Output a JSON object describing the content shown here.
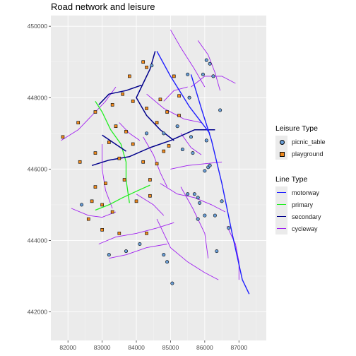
{
  "title": "Road network and leisure",
  "colors": {
    "panel": "#ebebeb",
    "grid_major": "#ffffff",
    "motorway": "#1f1fff",
    "primary": "#22ee22",
    "secondary": "#00008b",
    "cycleway": "#a020f0",
    "picnic_table": "#6a9fd8",
    "playground": "#f08a1e"
  },
  "axes": {
    "x_ticks": [
      "82000",
      "83000",
      "84000",
      "85000",
      "86000",
      "87000"
    ],
    "y_ticks": [
      "442000",
      "444000",
      "446000",
      "448000",
      "450000"
    ],
    "x_range": [
      81500,
      87800
    ],
    "y_range": [
      441200,
      450300
    ]
  },
  "legend": {
    "leisure_title": "Leisure Type",
    "leisure_items": [
      {
        "label": "picnic_table",
        "shape": "circle",
        "color_key": "picnic_table"
      },
      {
        "label": "playground",
        "shape": "square",
        "color_key": "playground"
      }
    ],
    "line_title": "Line Type",
    "line_items": [
      {
        "label": "motorway",
        "color_key": "motorway"
      },
      {
        "label": "primary",
        "color_key": "primary"
      },
      {
        "label": "secondary",
        "color_key": "secondary"
      },
      {
        "label": "cycleway",
        "color_key": "cycleway"
      }
    ]
  },
  "chart_data": {
    "type": "scatter",
    "title": "Road network and leisure",
    "xlim": [
      81500,
      87800
    ],
    "ylim": [
      441200,
      450300
    ],
    "grid": true,
    "legend_position": "right",
    "lines": [
      {
        "type": "motorway",
        "coords": [
          [
            85600,
            448650
          ],
          [
            85900,
            447700
          ],
          [
            86200,
            446800
          ],
          [
            86500,
            445600
          ],
          [
            86800,
            444200
          ],
          [
            87100,
            442900
          ],
          [
            87300,
            442500
          ]
        ]
      },
      {
        "type": "motorway",
        "coords": [
          [
            84600,
            449300
          ],
          [
            85000,
            448600
          ],
          [
            85550,
            447750
          ],
          [
            86150,
            447000
          ]
        ]
      },
      {
        "type": "primary",
        "coords": [
          [
            82800,
            444850
          ],
          [
            83200,
            445000
          ],
          [
            83600,
            445200
          ],
          [
            84050,
            445400
          ],
          [
            84400,
            445550
          ]
        ]
      },
      {
        "type": "primary",
        "coords": [
          [
            82800,
            447900
          ],
          [
            83000,
            447600
          ],
          [
            83250,
            447100
          ],
          [
            83550,
            446700
          ],
          [
            83700,
            446200
          ],
          [
            83700,
            445700
          ],
          [
            83800,
            445050
          ]
        ]
      },
      {
        "type": "secondary",
        "coords": [
          [
            84550,
            449300
          ],
          [
            84400,
            448800
          ],
          [
            84200,
            448400
          ],
          [
            84000,
            448000
          ],
          [
            84300,
            447500
          ],
          [
            84700,
            447100
          ],
          [
            85100,
            446800
          ]
        ]
      },
      {
        "type": "secondary",
        "coords": [
          [
            82700,
            446100
          ],
          [
            83200,
            446250
          ],
          [
            83800,
            446350
          ],
          [
            84400,
            446600
          ],
          [
            85000,
            446800
          ],
          [
            85700,
            447100
          ],
          [
            86300,
            447100
          ]
        ]
      },
      {
        "type": "secondary",
        "coords": [
          [
            82900,
            447800
          ],
          [
            83200,
            448100
          ],
          [
            83700,
            448200
          ],
          [
            84150,
            448350
          ]
        ]
      },
      {
        "type": "secondary",
        "coords": [
          [
            83000,
            446950
          ],
          [
            83700,
            446500
          ]
        ]
      },
      {
        "type": "cycleway",
        "coords": [
          [
            81800,
            446800
          ],
          [
            82300,
            447100
          ],
          [
            82700,
            447500
          ],
          [
            83100,
            447900
          ],
          [
            83400,
            448300
          ]
        ]
      },
      {
        "type": "cycleway",
        "coords": [
          [
            82100,
            444900
          ],
          [
            82600,
            444700
          ],
          [
            83000,
            444650
          ],
          [
            83400,
            444800
          ]
        ]
      },
      {
        "type": "cycleway",
        "coords": [
          [
            82900,
            443900
          ],
          [
            83400,
            444100
          ],
          [
            84000,
            444200
          ],
          [
            84600,
            444350
          ],
          [
            85100,
            444500
          ]
        ]
      },
      {
        "type": "cycleway",
        "coords": [
          [
            83200,
            443500
          ],
          [
            83700,
            443600
          ],
          [
            84300,
            443800
          ],
          [
            84900,
            443900
          ]
        ]
      },
      {
        "type": "cycleway",
        "coords": [
          [
            84600,
            444600
          ],
          [
            85000,
            443800
          ],
          [
            85500,
            443400
          ],
          [
            86000,
            443100
          ],
          [
            86400,
            442900
          ]
        ]
      },
      {
        "type": "cycleway",
        "coords": [
          [
            85300,
            445500
          ],
          [
            85650,
            444900
          ],
          [
            86000,
            444200
          ],
          [
            86100,
            443500
          ]
        ]
      },
      {
        "type": "cycleway",
        "coords": [
          [
            84300,
            448100
          ],
          [
            84800,
            447700
          ],
          [
            85400,
            447400
          ],
          [
            85900,
            447300
          ]
        ]
      },
      {
        "type": "cycleway",
        "coords": [
          [
            85000,
            449900
          ],
          [
            85300,
            449400
          ],
          [
            85700,
            448800
          ],
          [
            86000,
            448300
          ]
        ]
      },
      {
        "type": "cycleway",
        "coords": [
          [
            85800,
            449600
          ],
          [
            86100,
            449200
          ],
          [
            86300,
            448700
          ],
          [
            86450,
            448200
          ]
        ]
      },
      {
        "type": "cycleway",
        "coords": [
          [
            85600,
            448300
          ],
          [
            86000,
            448600
          ],
          [
            86500,
            448600
          ],
          [
            86900,
            448400
          ]
        ]
      },
      {
        "type": "cycleway",
        "coords": [
          [
            84700,
            445600
          ],
          [
            85200,
            445300
          ],
          [
            85700,
            445200
          ],
          [
            86200,
            445000
          ],
          [
            86600,
            444800
          ]
        ]
      },
      {
        "type": "cycleway",
        "coords": [
          [
            85000,
            446000
          ],
          [
            85500,
            446100
          ],
          [
            86000,
            446150
          ],
          [
            86500,
            446200
          ]
        ]
      },
      {
        "type": "cycleway",
        "coords": [
          [
            84200,
            446900
          ],
          [
            84500,
            446400
          ],
          [
            84700,
            445900
          ],
          [
            84900,
            445500
          ]
        ]
      },
      {
        "type": "cycleway",
        "coords": [
          [
            83000,
            446700
          ],
          [
            83000,
            446000
          ],
          [
            83100,
            445400
          ],
          [
            83300,
            444900
          ]
        ]
      },
      {
        "type": "cycleway",
        "coords": [
          [
            84800,
            447900
          ],
          [
            85100,
            448200
          ],
          [
            85500,
            448300
          ]
        ]
      },
      {
        "type": "cycleway",
        "coords": [
          [
            86650,
            444400
          ],
          [
            86900,
            443900
          ],
          [
            87000,
            443400
          ],
          [
            87000,
            442900
          ]
        ]
      },
      {
        "type": "cycleway",
        "coords": [
          [
            83500,
            447300
          ],
          [
            83800,
            447000
          ],
          [
            84100,
            446800
          ]
        ]
      },
      {
        "type": "cycleway",
        "coords": [
          [
            84000,
            445300
          ],
          [
            84500,
            445000
          ],
          [
            84800,
            444700
          ]
        ]
      },
      {
        "type": "cycleway",
        "coords": [
          [
            85300,
            447000
          ],
          [
            85600,
            446600
          ],
          [
            85900,
            446400
          ]
        ]
      }
    ],
    "points": [
      {
        "type": "picnic_table",
        "x": 86050,
        "y": 449050
      },
      {
        "type": "picnic_table",
        "x": 86150,
        "y": 448950
      },
      {
        "type": "picnic_table",
        "x": 86250,
        "y": 448600
      },
      {
        "type": "picnic_table",
        "x": 85950,
        "y": 448650
      },
      {
        "type": "picnic_table",
        "x": 85500,
        "y": 448650
      },
      {
        "type": "picnic_table",
        "x": 85550,
        "y": 448000
      },
      {
        "type": "picnic_table",
        "x": 86450,
        "y": 447650
      },
      {
        "type": "picnic_table",
        "x": 85200,
        "y": 447200
      },
      {
        "type": "picnic_table",
        "x": 85600,
        "y": 446900
      },
      {
        "type": "picnic_table",
        "x": 85350,
        "y": 446550
      },
      {
        "type": "picnic_table",
        "x": 85650,
        "y": 446450
      },
      {
        "type": "picnic_table",
        "x": 86050,
        "y": 446800
      },
      {
        "type": "picnic_table",
        "x": 86100,
        "y": 446050
      },
      {
        "type": "picnic_table",
        "x": 86000,
        "y": 445950
      },
      {
        "type": "picnic_table",
        "x": 86150,
        "y": 446100
      },
      {
        "type": "picnic_table",
        "x": 85700,
        "y": 445300
      },
      {
        "type": "picnic_table",
        "x": 85800,
        "y": 445200
      },
      {
        "type": "picnic_table",
        "x": 85850,
        "y": 445050
      },
      {
        "type": "picnic_table",
        "x": 85500,
        "y": 445300
      },
      {
        "type": "picnic_table",
        "x": 86000,
        "y": 444700
      },
      {
        "type": "picnic_table",
        "x": 85800,
        "y": 444600
      },
      {
        "type": "picnic_table",
        "x": 86300,
        "y": 444700
      },
      {
        "type": "picnic_table",
        "x": 86500,
        "y": 445100
      },
      {
        "type": "picnic_table",
        "x": 86700,
        "y": 444350
      },
      {
        "type": "picnic_table",
        "x": 86350,
        "y": 443700
      },
      {
        "type": "picnic_table",
        "x": 84800,
        "y": 443600
      },
      {
        "type": "picnic_table",
        "x": 84900,
        "y": 443400
      },
      {
        "type": "picnic_table",
        "x": 84100,
        "y": 443900
      },
      {
        "type": "picnic_table",
        "x": 83700,
        "y": 443700
      },
      {
        "type": "picnic_table",
        "x": 83200,
        "y": 443600
      },
      {
        "type": "picnic_table",
        "x": 85050,
        "y": 442800
      },
      {
        "type": "picnic_table",
        "x": 84450,
        "y": 448900
      },
      {
        "type": "picnic_table",
        "x": 82400,
        "y": 445000
      },
      {
        "type": "picnic_table",
        "x": 84300,
        "y": 447000
      },
      {
        "type": "picnic_table",
        "x": 84800,
        "y": 447000
      },
      {
        "type": "playground",
        "x": 84200,
        "y": 449000
      },
      {
        "type": "playground",
        "x": 84300,
        "y": 448850
      },
      {
        "type": "playground",
        "x": 83800,
        "y": 448600
      },
      {
        "type": "playground",
        "x": 83600,
        "y": 448100
      },
      {
        "type": "playground",
        "x": 83900,
        "y": 447900
      },
      {
        "type": "playground",
        "x": 84300,
        "y": 447700
      },
      {
        "type": "playground",
        "x": 84700,
        "y": 447950
      },
      {
        "type": "playground",
        "x": 84900,
        "y": 447600
      },
      {
        "type": "playground",
        "x": 85250,
        "y": 447500
      },
      {
        "type": "playground",
        "x": 84600,
        "y": 447300
      },
      {
        "type": "playground",
        "x": 83300,
        "y": 447800
      },
      {
        "type": "playground",
        "x": 82800,
        "y": 447600
      },
      {
        "type": "playground",
        "x": 82300,
        "y": 447300
      },
      {
        "type": "playground",
        "x": 81850,
        "y": 446900
      },
      {
        "type": "playground",
        "x": 83400,
        "y": 447200
      },
      {
        "type": "playground",
        "x": 83700,
        "y": 447050
      },
      {
        "type": "playground",
        "x": 83900,
        "y": 446700
      },
      {
        "type": "playground",
        "x": 83200,
        "y": 446750
      },
      {
        "type": "playground",
        "x": 82800,
        "y": 446450
      },
      {
        "type": "playground",
        "x": 82350,
        "y": 446200
      },
      {
        "type": "playground",
        "x": 84200,
        "y": 446200
      },
      {
        "type": "playground",
        "x": 84600,
        "y": 446150
      },
      {
        "type": "playground",
        "x": 84800,
        "y": 446500
      },
      {
        "type": "playground",
        "x": 84400,
        "y": 445700
      },
      {
        "type": "playground",
        "x": 83650,
        "y": 445700
      },
      {
        "type": "playground",
        "x": 83100,
        "y": 445600
      },
      {
        "type": "playground",
        "x": 82800,
        "y": 445500
      },
      {
        "type": "playground",
        "x": 82700,
        "y": 445100
      },
      {
        "type": "playground",
        "x": 83000,
        "y": 445000
      },
      {
        "type": "playground",
        "x": 83300,
        "y": 444800
      },
      {
        "type": "playground",
        "x": 82600,
        "y": 444600
      },
      {
        "type": "playground",
        "x": 83000,
        "y": 444300
      },
      {
        "type": "playground",
        "x": 83500,
        "y": 444200
      },
      {
        "type": "playground",
        "x": 84300,
        "y": 444200
      },
      {
        "type": "playground",
        "x": 84400,
        "y": 445250
      },
      {
        "type": "playground",
        "x": 84950,
        "y": 446650
      },
      {
        "type": "playground",
        "x": 85100,
        "y": 448600
      },
      {
        "type": "playground",
        "x": 85250,
        "y": 448050
      },
      {
        "type": "playground",
        "x": 83500,
        "y": 446300
      },
      {
        "type": "playground",
        "x": 84000,
        "y": 445100
      }
    ]
  }
}
